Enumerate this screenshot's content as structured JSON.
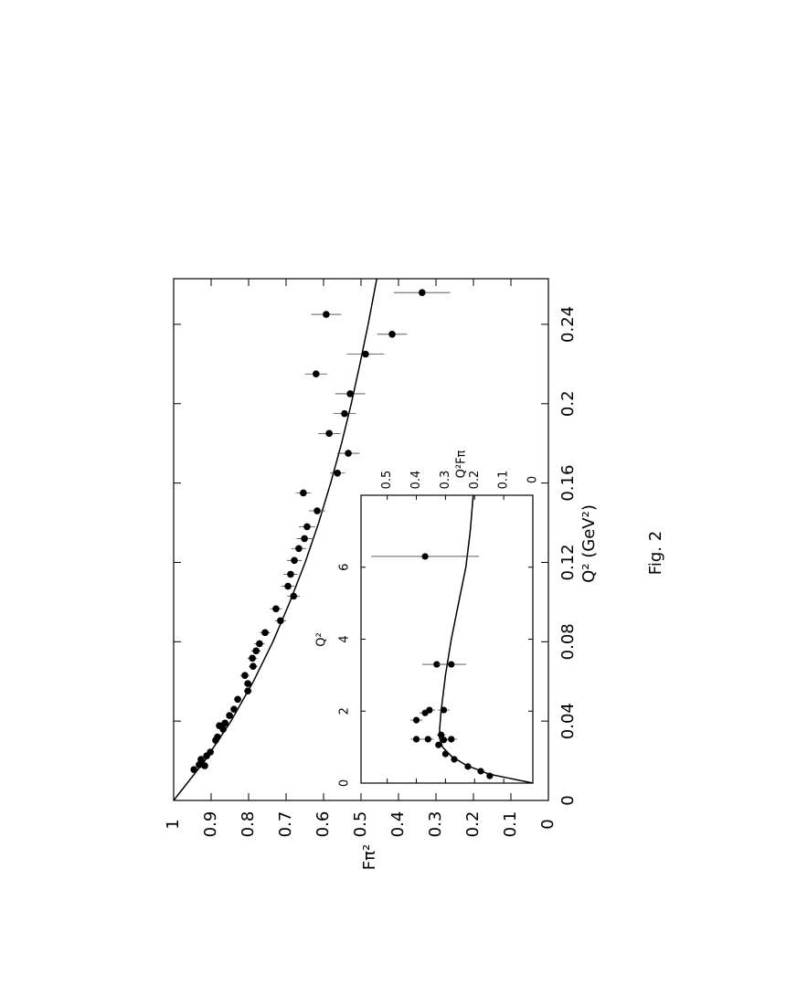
{
  "caption": "Fig. 2",
  "chart_data": [
    {
      "type": "scatter",
      "x_label": "Q² (GeV²)",
      "y_label": "Fπ²",
      "xlim": [
        0,
        0.263
      ],
      "ylim": [
        0,
        1
      ],
      "xticks": [
        0,
        0.04,
        0.08,
        0.12,
        0.16,
        0.2,
        0.24
      ],
      "yticks": [
        0,
        0.1,
        0.2,
        0.3,
        0.4,
        0.5,
        0.6,
        0.7,
        0.8,
        0.9,
        1
      ],
      "color": "#000000",
      "points": {
        "x": [
          0.0156,
          0.018,
          0.0175,
          0.0207,
          0.0225,
          0.0244,
          0.0303,
          0.032,
          0.0359,
          0.0377,
          0.039,
          0.0428,
          0.046,
          0.051,
          0.0552,
          0.0589,
          0.063,
          0.0676,
          0.0717,
          0.0754,
          0.079,
          0.0846,
          0.0906,
          0.0966,
          0.103,
          0.108,
          0.114,
          0.121,
          0.127,
          0.132,
          0.138,
          0.146,
          0.155,
          0.165,
          0.175,
          0.185,
          0.195,
          0.205,
          0.215,
          0.225,
          0.235,
          0.245,
          0.256
        ],
        "values": [
          0.946,
          0.932,
          0.917,
          0.927,
          0.912,
          0.902,
          0.888,
          0.883,
          0.868,
          0.878,
          0.863,
          0.851,
          0.839,
          0.829,
          0.802,
          0.802,
          0.81,
          0.788,
          0.79,
          0.78,
          0.771,
          0.756,
          0.715,
          0.727,
          0.68,
          0.695,
          0.688,
          0.678,
          0.666,
          0.651,
          0.644,
          0.617,
          0.654,
          0.563,
          0.534,
          0.585,
          0.544,
          0.529,
          0.62,
          0.488,
          0.417,
          0.593,
          0.337
        ],
        "errors": [
          0.006,
          0.006,
          0.006,
          0.007,
          0.007,
          0.007,
          0.008,
          0.008,
          0.008,
          0.009,
          0.009,
          0.009,
          0.01,
          0.01,
          0.011,
          0.011,
          0.012,
          0.012,
          0.013,
          0.013,
          0.014,
          0.014,
          0.015,
          0.016,
          0.017,
          0.018,
          0.019,
          0.02,
          0.02,
          0.021,
          0.022,
          0.022,
          0.02,
          0.02,
          0.03,
          0.03,
          0.03,
          0.04,
          0.03,
          0.05,
          0.04,
          0.04,
          0.075
        ]
      },
      "curve": {
        "x": [
          0,
          0.02,
          0.04,
          0.06,
          0.08,
          0.1,
          0.12,
          0.14,
          0.16,
          0.18,
          0.2,
          0.22,
          0.24,
          0.26,
          0.263
        ],
        "values": [
          1,
          0.917,
          0.847,
          0.787,
          0.735,
          0.69,
          0.649,
          0.613,
          0.581,
          0.552,
          0.526,
          0.503,
          0.481,
          0.461,
          0.458
        ]
      }
    },
    {
      "type": "scatter",
      "x_label": "Q²",
      "y_label": "Q²Fπ",
      "xlim": [
        0,
        8
      ],
      "ylim": [
        0,
        0.59
      ],
      "xticks": [
        0,
        2,
        4,
        6
      ],
      "yticks": [
        0,
        0.1,
        0.2,
        0.3,
        0.4,
        0.5
      ],
      "color": "#000000",
      "points": {
        "x": [
          0.2,
          0.33,
          0.46,
          0.66,
          0.81,
          1.06,
          1.22,
          1.22,
          1.22,
          1.34,
          1.2,
          1.75,
          1.95,
          2.03,
          2.03,
          3.3,
          3.3,
          6.3
        ],
        "values": [
          0.148,
          0.179,
          0.223,
          0.27,
          0.3,
          0.324,
          0.4,
          0.36,
          0.28,
          0.315,
          0.306,
          0.4,
          0.37,
          0.355,
          0.306,
          0.33,
          0.28,
          0.37
        ],
        "errors": [
          0.004,
          0.005,
          0.006,
          0.006,
          0.007,
          0.008,
          0.02,
          0.02,
          0.02,
          0.015,
          0.015,
          0.02,
          0.02,
          0.02,
          0.02,
          0.05,
          0.05,
          0.185
        ]
      },
      "curve": {
        "x": [
          0,
          0.25,
          0.5,
          0.75,
          1,
          1.25,
          1.5,
          2,
          3,
          4,
          5,
          6,
          7,
          8
        ],
        "values": [
          0,
          0.15,
          0.23,
          0.28,
          0.31,
          0.32,
          0.32,
          0.315,
          0.3,
          0.28,
          0.255,
          0.23,
          0.215,
          0.205
        ]
      }
    }
  ]
}
